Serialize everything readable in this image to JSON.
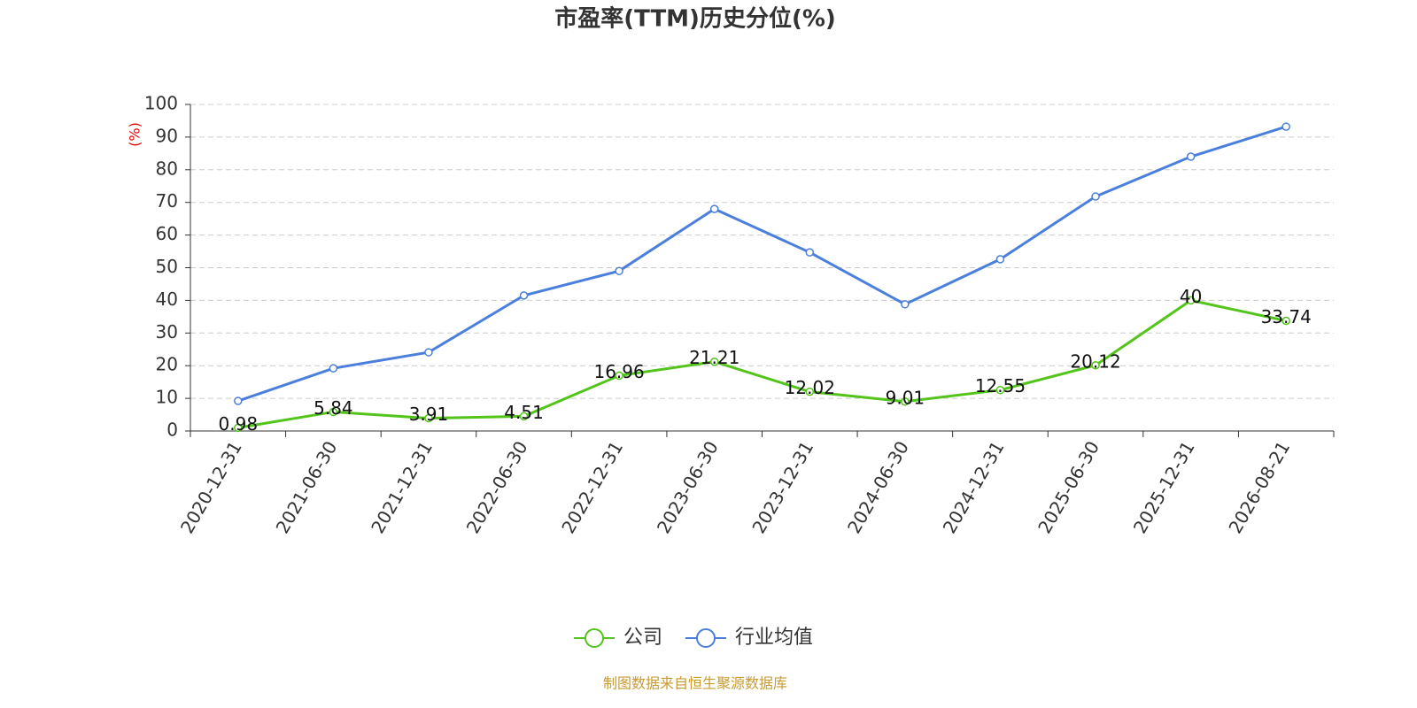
{
  "chart_data": {
    "type": "line",
    "title": "市盈率(TTM)历史分位(%)",
    "y_label": "(%)",
    "categories": [
      "2020-12-31",
      "2021-06-30",
      "2021-12-31",
      "2022-06-30",
      "2022-12-31",
      "2023-06-30",
      "2023-12-31",
      "2024-06-30",
      "2024-12-31",
      "2025-06-30",
      "2025-12-31",
      "2026-08-21"
    ],
    "series": [
      {
        "name": "公司",
        "color": "#52c41a",
        "labels": true,
        "values": [
          0.98,
          5.84,
          3.91,
          4.51,
          16.96,
          21.21,
          12.02,
          9.01,
          12.55,
          20.12,
          40,
          33.74
        ]
      },
      {
        "name": "行业均值",
        "color": "#4a7fdc",
        "labels": false,
        "values": [
          9.2,
          19.2,
          24.1,
          41.5,
          49,
          68,
          54.7,
          38.8,
          52.6,
          71.8,
          84,
          93.2
        ]
      }
    ],
    "ylim": [
      0,
      100
    ],
    "yticks": [
      0,
      10,
      20,
      30,
      40,
      50,
      60,
      70,
      80,
      90,
      100
    ],
    "grid": true,
    "source": "制图数据来自恒生聚源数据库"
  }
}
